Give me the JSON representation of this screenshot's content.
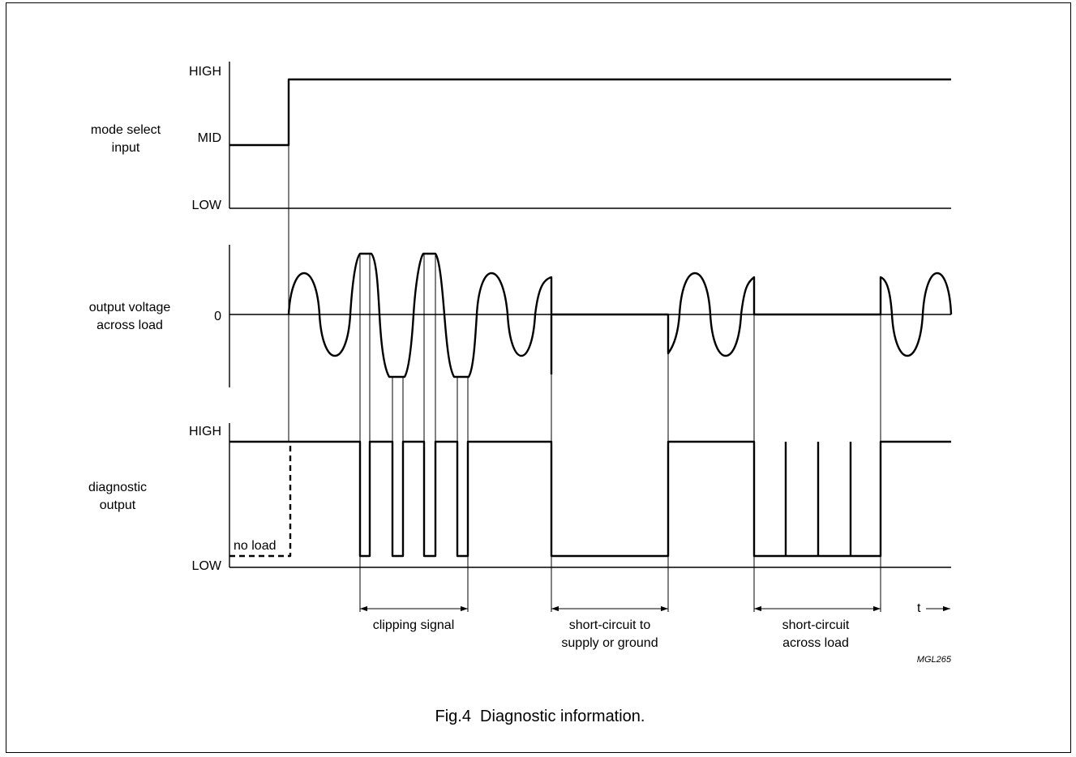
{
  "labels": {
    "mode_select": [
      "mode select",
      "input"
    ],
    "output_voltage": [
      "output voltage",
      "across load"
    ],
    "diagnostic": [
      "diagnostic",
      "output"
    ]
  },
  "levels": {
    "high": "HIGH",
    "mid": "MID",
    "low": "LOW",
    "zero": "0"
  },
  "annotations": {
    "no_load": "no load",
    "time_axis": "t",
    "clipping": [
      "clipping signal"
    ],
    "short_supply": [
      "short-circuit to",
      "supply or ground"
    ],
    "short_load": [
      "short-circuit",
      "across load"
    ],
    "code": "MGL265"
  },
  "caption": "Fig.4  Diagnostic information."
}
